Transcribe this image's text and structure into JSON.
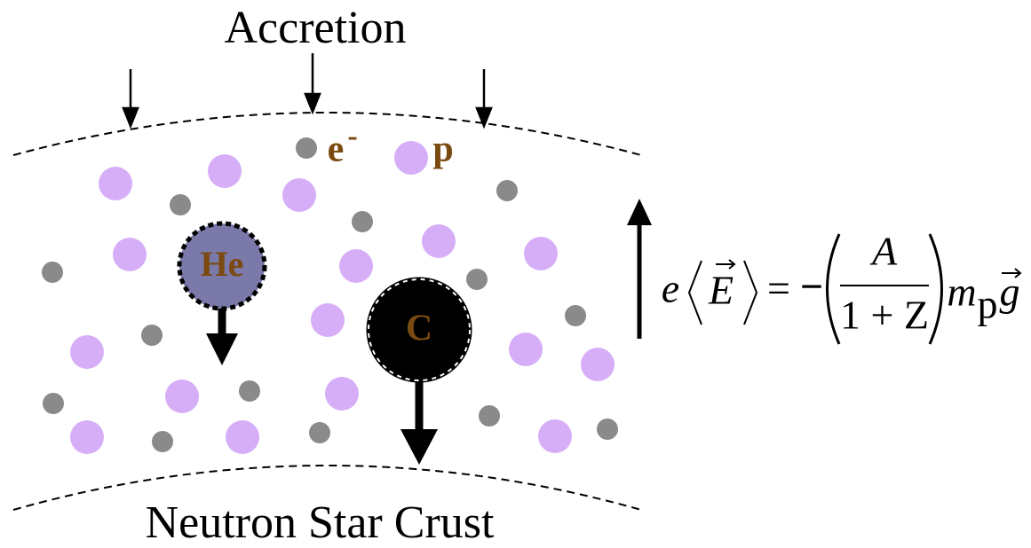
{
  "title": "Accretion",
  "bottom_label": "Neutron Star Crust",
  "legend": {
    "electron": "e",
    "electron_charge": "-",
    "proton": "p"
  },
  "nuclei": {
    "helium": "He",
    "carbon": "C"
  },
  "equation": {
    "e": "e",
    "E": "E",
    "equals": "=",
    "minus": "−",
    "numerator": "A",
    "denominator": "1 + Z",
    "m": "m",
    "m_sub": "p",
    "g": "g"
  }
}
